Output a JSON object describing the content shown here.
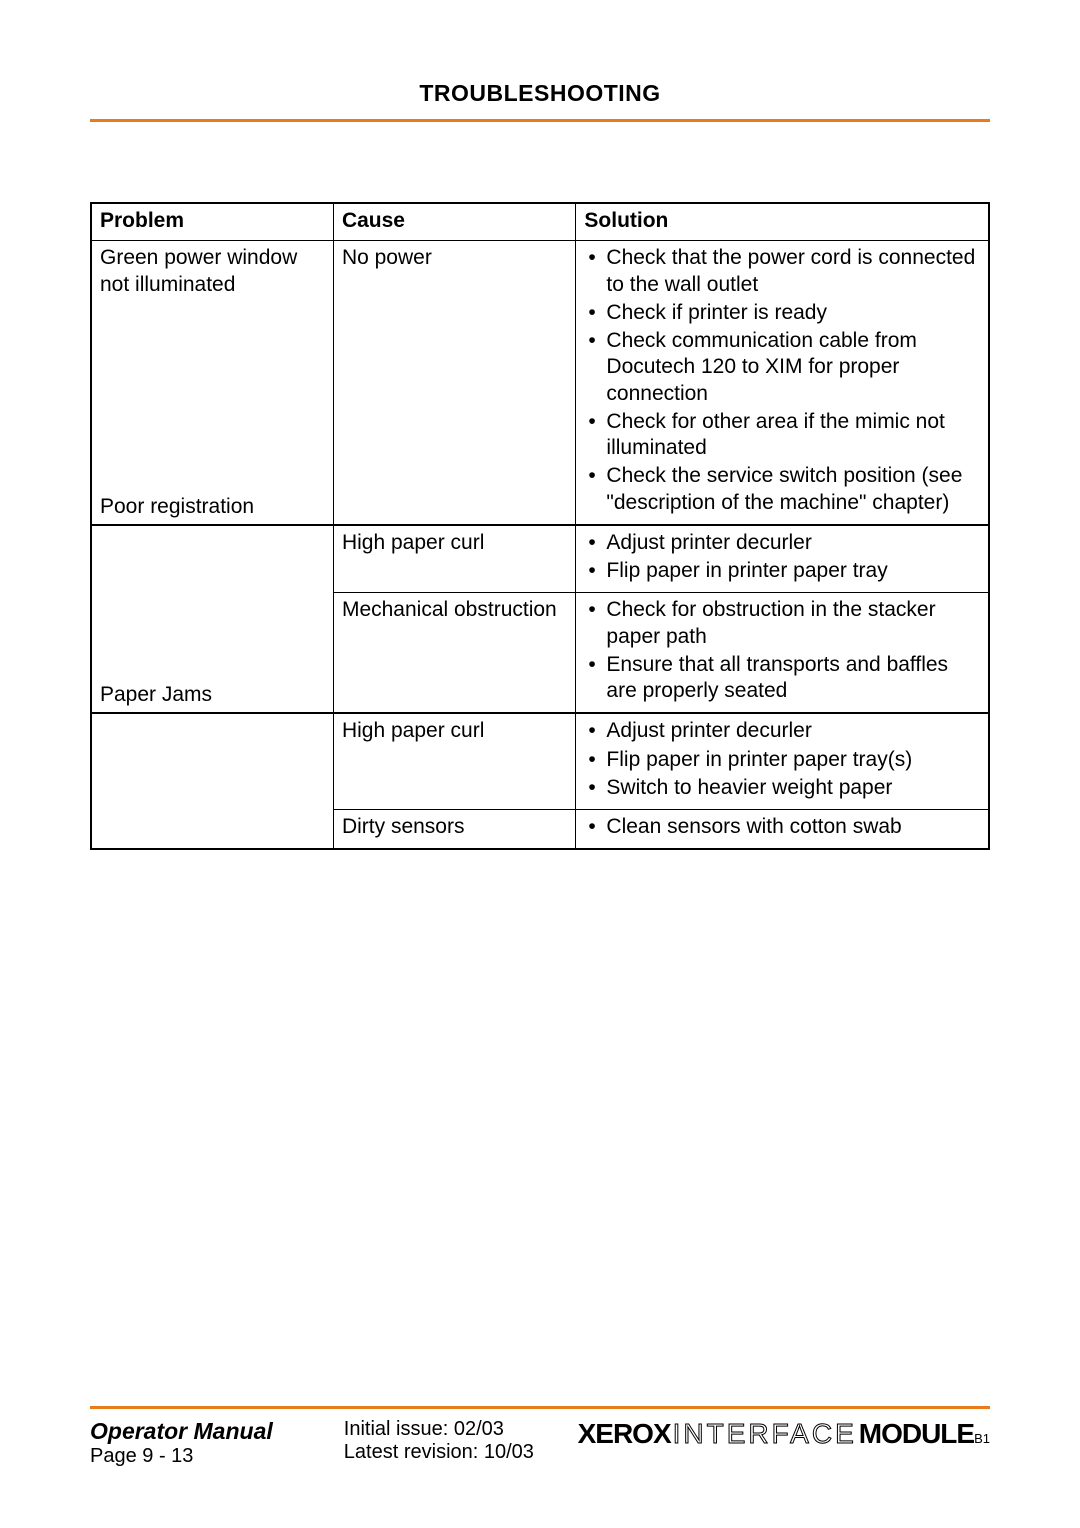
{
  "page_title": "TROUBLESHOOTING",
  "colors": {
    "rule": "#e87b1c",
    "text": "#000000",
    "background": "#ffffff"
  },
  "table": {
    "columns": [
      "Problem",
      "Cause",
      "Solution"
    ],
    "col_widths_pct": [
      27,
      27,
      46
    ],
    "font_size": 21,
    "rows": [
      {
        "problem_top": "Green power window not illuminated",
        "problem_bottom": "Poor registration",
        "cause": "No power",
        "solutions": [
          "Check that the power cord is connected to the wall outlet",
          "Check if printer is ready",
          "Check communication cable from Docutech 120 to XIM for proper connection",
          "Check for other area if the mimic not illuminated",
          "Check the service switch position (see \"description of the machine\" chapter)"
        ]
      },
      {
        "problem_top": "",
        "problem_bottom": "",
        "cause": "High paper curl",
        "solutions": [
          "Adjust printer decurler",
          "Flip paper in printer paper tray"
        ]
      },
      {
        "problem_top": "",
        "problem_bottom": "Paper Jams",
        "cause": "Mechanical obstruction",
        "solutions": [
          "Check for obstruction in the stacker paper path",
          "Ensure that all transports and baffles are properly seated"
        ]
      },
      {
        "problem_top": "",
        "problem_bottom": "",
        "cause": "High paper curl",
        "solutions": [
          "Adjust printer decurler",
          "Flip paper in printer paper tray(s)",
          "Switch to heavier weight paper"
        ]
      },
      {
        "problem_top": "",
        "problem_bottom": "",
        "cause": "Dirty sensors",
        "solutions": [
          "Clean sensors with cotton swab"
        ]
      }
    ]
  },
  "footer": {
    "manual_title": "Operator Manual",
    "page_label": "Page 9 - 13",
    "initial_issue": "Initial issue: 02/03",
    "latest_revision": "Latest revision: 10/03",
    "logo_xerox": "XEROX",
    "logo_interface": "INTERFACE",
    "logo_module": "MODULE",
    "logo_suffix": "B1"
  }
}
